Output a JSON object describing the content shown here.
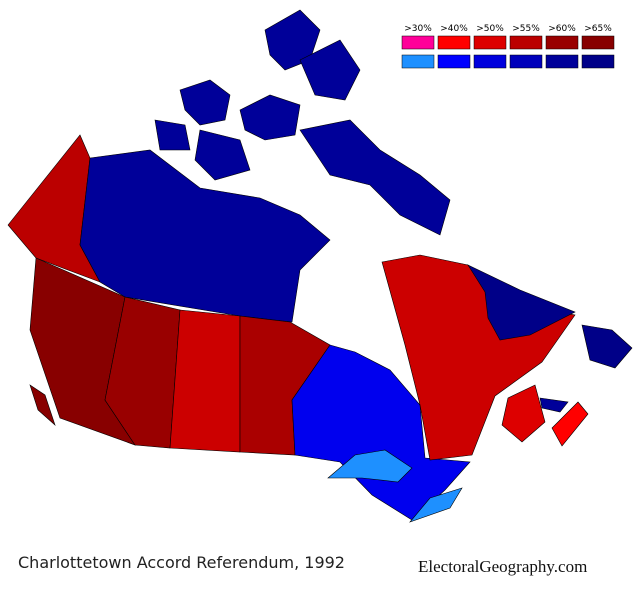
{
  "legend": {
    "labels": [
      ">30%",
      ">40%",
      ">50%",
      ">55%",
      ">60%",
      ">65%"
    ],
    "yes_colors": [
      "#ff0099",
      "#ff0000",
      "#dd0000",
      "#bb0000",
      "#990000",
      "#880000"
    ],
    "no_colors": [
      "#1e90ff",
      "#0000ff",
      "#0000dd",
      "#0000bb",
      "#000099",
      "#000088"
    ]
  },
  "caption": "Charlottetown Accord Referendum, 1992",
  "source": "ElectoralGeography.com"
}
